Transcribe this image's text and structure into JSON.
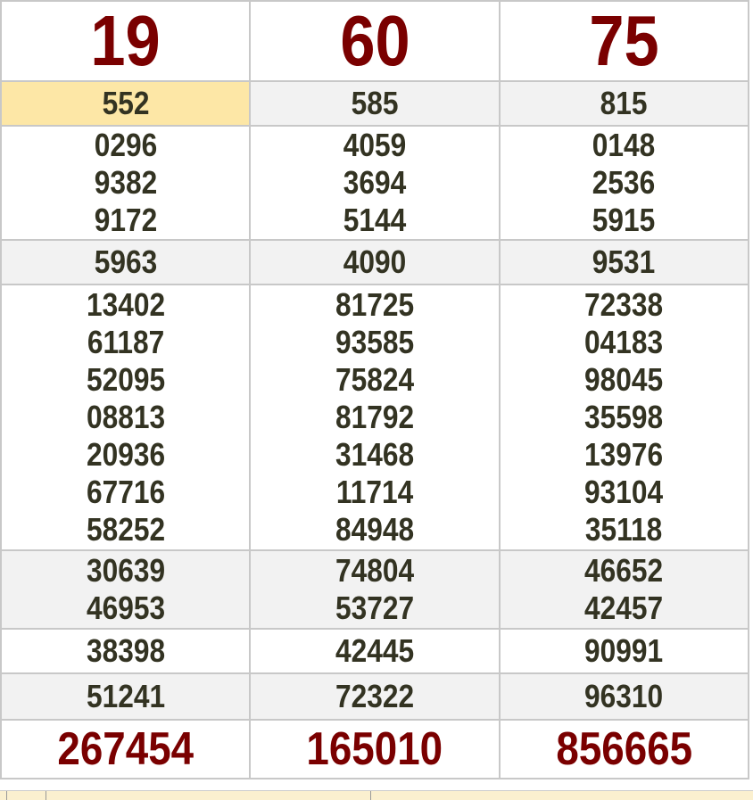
{
  "provinces": [
    "19",
    "60",
    "75"
  ],
  "rows": [
    {
      "shade": false,
      "cells": [
        [
          "19"
        ],
        [
          "60"
        ],
        [
          "75"
        ]
      ]
    }
  ],
  "prizes": [
    {
      "shade": true,
      "cells": [
        [
          "552"
        ],
        [
          "585"
        ],
        [
          "815"
        ]
      ]
    },
    {
      "shade": false,
      "cells": [
        [
          "0296",
          "9382",
          "9172"
        ],
        [
          "4059",
          "3694",
          "5144"
        ],
        [
          "0148",
          "2536",
          "5915"
        ]
      ]
    },
    {
      "shade": true,
      "cells": [
        [
          "5963"
        ],
        [
          "4090"
        ],
        [
          "9531"
        ]
      ]
    },
    {
      "shade": false,
      "cells": [
        [
          "13402",
          "61187",
          "52095",
          "08813",
          "20936",
          "67716",
          "58252"
        ],
        [
          "81725",
          "93585",
          "75824",
          "81792",
          "31468",
          "11714",
          "84948"
        ],
        [
          "72338",
          "04183",
          "98045",
          "35598",
          "13976",
          "93104",
          "35118"
        ]
      ]
    },
    {
      "shade": true,
      "cells": [
        [
          "30639",
          "46953"
        ],
        [
          "74804",
          "53727"
        ],
        [
          "46652",
          "42457"
        ]
      ]
    },
    {
      "shade": false,
      "cells": [
        [
          "38398"
        ],
        [
          "42445"
        ],
        [
          "90991"
        ]
      ]
    },
    {
      "shade": true,
      "cells": [
        [
          "51241"
        ],
        [
          "72322"
        ],
        [
          "96310"
        ]
      ]
    }
  ],
  "special": [
    "267454",
    "165010",
    "856665"
  ],
  "highlight": {
    "row": 0,
    "col": 0,
    "color": "#fde7a6"
  },
  "colors": {
    "accent": "#7a0000",
    "text": "#333322",
    "shade": "#f2f2f2"
  }
}
